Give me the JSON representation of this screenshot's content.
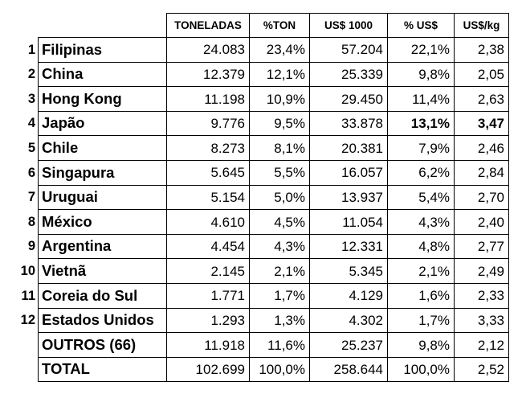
{
  "table": {
    "headers": [
      "TONELADAS",
      "%TON",
      "US$ 1000",
      "% US$",
      "US$/kg"
    ],
    "rows": [
      {
        "rank": "1",
        "name": "Filipinas",
        "toneladas": "24.083",
        "pct_ton": "23,4%",
        "usd_1000": "57.204",
        "pct_usd": "22,1%",
        "usd_kg": "2,38"
      },
      {
        "rank": "2",
        "name": "China",
        "toneladas": "12.379",
        "pct_ton": "12,1%",
        "usd_1000": "25.339",
        "pct_usd": "9,8%",
        "usd_kg": "2,05"
      },
      {
        "rank": "3",
        "name": "Hong Kong",
        "toneladas": "11.198",
        "pct_ton": "10,9%",
        "usd_1000": "29.450",
        "pct_usd": "11,4%",
        "usd_kg": "2,63"
      },
      {
        "rank": "4",
        "name": "Japão",
        "toneladas": "9.776",
        "pct_ton": "9,5%",
        "usd_1000": "33.878",
        "pct_usd": "13,1%",
        "usd_kg": "3,47"
      },
      {
        "rank": "5",
        "name": "Chile",
        "toneladas": "8.273",
        "pct_ton": "8,1%",
        "usd_1000": "20.381",
        "pct_usd": "7,9%",
        "usd_kg": "2,46"
      },
      {
        "rank": "6",
        "name": "Singapura",
        "toneladas": "5.645",
        "pct_ton": "5,5%",
        "usd_1000": "16.057",
        "pct_usd": "6,2%",
        "usd_kg": "2,84"
      },
      {
        "rank": "7",
        "name": "Uruguai",
        "toneladas": "5.154",
        "pct_ton": "5,0%",
        "usd_1000": "13.937",
        "pct_usd": "5,4%",
        "usd_kg": "2,70"
      },
      {
        "rank": "8",
        "name": "México",
        "toneladas": "4.610",
        "pct_ton": "4,5%",
        "usd_1000": "11.054",
        "pct_usd": "4,3%",
        "usd_kg": "2,40"
      },
      {
        "rank": "9",
        "name": "Argentina",
        "toneladas": "4.454",
        "pct_ton": "4,3%",
        "usd_1000": "12.331",
        "pct_usd": "4,8%",
        "usd_kg": "2,77"
      },
      {
        "rank": "10",
        "name": "Vietnã",
        "toneladas": "2.145",
        "pct_ton": "2,1%",
        "usd_1000": "5.345",
        "pct_usd": "2,1%",
        "usd_kg": "2,49"
      },
      {
        "rank": "11",
        "name": "Coreia do Sul",
        "toneladas": "1.771",
        "pct_ton": "1,7%",
        "usd_1000": "4.129",
        "pct_usd": "1,6%",
        "usd_kg": "2,33"
      },
      {
        "rank": "12",
        "name": "Estados Unidos",
        "toneladas": "1.293",
        "pct_ton": "1,3%",
        "usd_1000": "4.302",
        "pct_usd": "1,7%",
        "usd_kg": "3,33"
      },
      {
        "rank": "",
        "name": "OUTROS (66)",
        "toneladas": "11.918",
        "pct_ton": "11,6%",
        "usd_1000": "25.237",
        "pct_usd": "9,8%",
        "usd_kg": "2,12"
      },
      {
        "rank": "",
        "name": "TOTAL",
        "toneladas": "102.699",
        "pct_ton": "100,0%",
        "usd_1000": "258.644",
        "pct_usd": "100,0%",
        "usd_kg": "2,52"
      }
    ]
  }
}
